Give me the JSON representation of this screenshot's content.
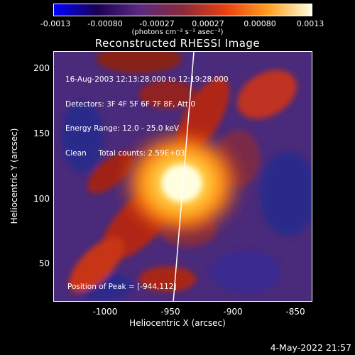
{
  "colorbar": {
    "ticks": [
      "-0.0013",
      "-0.00080",
      "-0.00027",
      "0.00027",
      "0.00080",
      "0.0013"
    ],
    "units": "(photons cm⁻² s⁻¹ asec⁻²)"
  },
  "plot": {
    "title": "Reconstructed RHESSI Image",
    "info_lines": [
      "16-Aug-2003 12:13:28.000 to 12:19:28.000",
      "Detectors: 3F 4F 5F 6F 7F 8F, Att 0",
      "Energy Range: 12.0 - 25.0 keV",
      "Clean     Total counts: 2.59E+03"
    ],
    "peak_text": "Position of Peak = [-944,112]",
    "xlabel": "Heliocentric X (arcsec)",
    "ylabel": "Heliocentric Y (arcsec)",
    "xticks": [
      "-1000",
      "-950",
      "-900",
      "-850"
    ],
    "yticks": [
      "200",
      "150",
      "100",
      "50"
    ],
    "peak": {
      "x": -944,
      "y": 112
    },
    "xlim": [
      -1040,
      -843
    ],
    "ylim": [
      21,
      212
    ],
    "limb_color": "#ffffff"
  },
  "footer": {
    "timestamp": "4-May-2022 21:57"
  },
  "colors": {
    "background": "#000000",
    "colormap": [
      "#0000ff",
      "#1a0055",
      "#5a2a80",
      "#8a2a3a",
      "#e84010",
      "#ffa020",
      "#ffffe0"
    ]
  }
}
